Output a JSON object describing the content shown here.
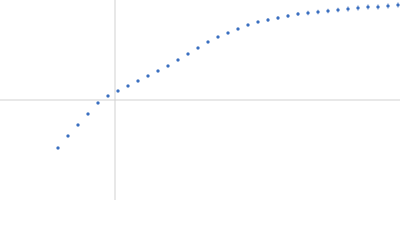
{
  "chart_data": {
    "type": "scatter",
    "x": [
      -0.57,
      -0.47,
      -0.37,
      -0.27,
      -0.17,
      -0.07,
      0.03,
      0.13,
      0.23,
      0.33,
      0.43,
      0.53,
      0.63,
      0.73,
      0.83,
      0.93,
      1.03,
      1.13,
      1.23,
      1.33,
      1.43,
      1.53,
      1.63,
      1.73,
      1.83,
      1.93,
      2.03,
      2.13,
      2.23,
      2.33,
      2.43,
      2.53,
      2.63,
      2.73,
      2.83
    ],
    "series": [
      {
        "color": "#3a6fc0",
        "values": [
          -0.48,
          -0.36,
          -0.25,
          -0.14,
          -0.03,
          0.04,
          0.09,
          0.14,
          0.19,
          0.24,
          0.29,
          0.34,
          0.4,
          0.46,
          0.52,
          0.58,
          0.63,
          0.67,
          0.71,
          0.75,
          0.78,
          0.8,
          0.82,
          0.84,
          0.86,
          0.87,
          0.88,
          0.89,
          0.9,
          0.91,
          0.92,
          0.93,
          0.93,
          0.94,
          0.95
        ],
        "errors": [
          0.01,
          0.01,
          0.01,
          0.01,
          0.01,
          0.01,
          0.01,
          0.01,
          0.01,
          0.01,
          0.01,
          0.01,
          0.01,
          0.01,
          0.015,
          0.015,
          0.015,
          0.015,
          0.015,
          0.015,
          0.015,
          0.02,
          0.02,
          0.02,
          0.02,
          0.025,
          0.025,
          0.025,
          0.025,
          0.03,
          0.03,
          0.03,
          0.03,
          0.03,
          0.03
        ]
      }
    ],
    "xlim": [
      -1.15,
      2.85
    ],
    "ylim": [
      -1,
      1
    ]
  }
}
